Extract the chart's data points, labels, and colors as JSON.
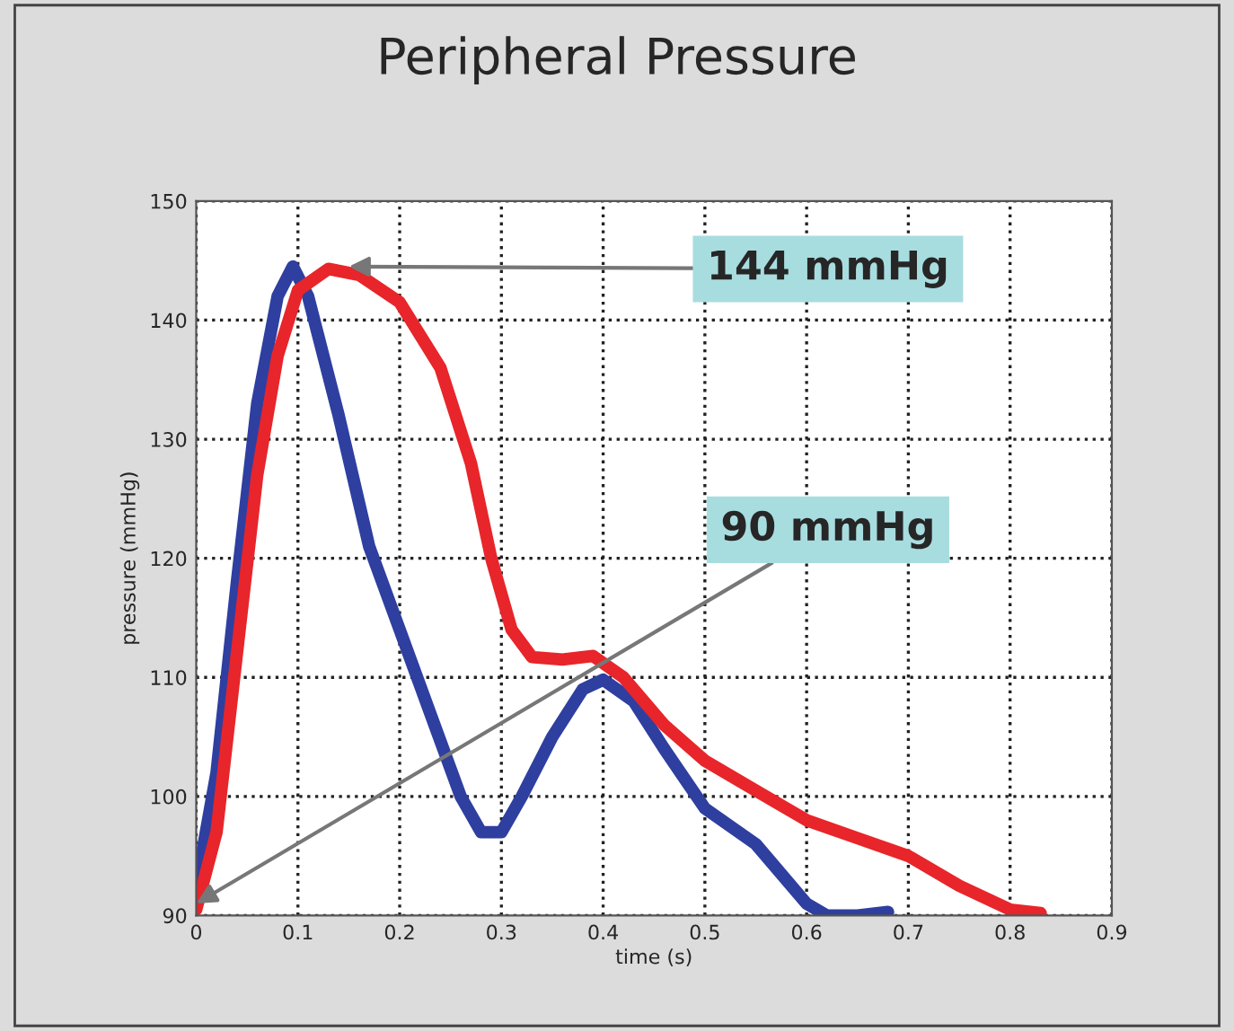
{
  "chart_data": {
    "type": "line",
    "title": "Peripheral Pressure",
    "xlabel": "time (s)",
    "ylabel": "pressure (mmHg)",
    "xlim": [
      0,
      0.9
    ],
    "xticks": [
      0,
      0.1,
      0.2,
      0.3,
      0.4,
      0.5,
      0.6,
      0.7,
      0.8,
      0.9
    ],
    "ylim": [
      90,
      150
    ],
    "yticks": [
      90,
      100,
      110,
      120,
      130,
      140,
      150
    ],
    "grid": true,
    "legend": false,
    "line_style": "solid",
    "marker": "none",
    "series": [
      {
        "color": "#2e3fa0",
        "x": [
          0,
          0.02,
          0.04,
          0.06,
          0.08,
          0.095,
          0.11,
          0.14,
          0.17,
          0.2,
          0.23,
          0.26,
          0.28,
          0.3,
          0.32,
          0.35,
          0.38,
          0.4,
          0.43,
          0.46,
          0.5,
          0.55,
          0.6,
          0.62,
          0.65,
          0.68
        ],
        "values": [
          92.5,
          102,
          118,
          133,
          142,
          144.5,
          142,
          132,
          121,
          114,
          107,
          100,
          97,
          97,
          100,
          105,
          109,
          109.8,
          108,
          104,
          99,
          96,
          91,
          90,
          90,
          90.3
        ]
      },
      {
        "color": "#e8252a",
        "x": [
          0,
          0.02,
          0.04,
          0.06,
          0.08,
          0.1,
          0.13,
          0.16,
          0.2,
          0.24,
          0.27,
          0.29,
          0.31,
          0.33,
          0.36,
          0.39,
          0.42,
          0.46,
          0.5,
          0.55,
          0.6,
          0.65,
          0.7,
          0.75,
          0.8,
          0.83
        ],
        "values": [
          90.5,
          97,
          112,
          127,
          137,
          142.5,
          144.3,
          143.8,
          141.5,
          136,
          128,
          120,
          114,
          111.7,
          111.5,
          111.8,
          110,
          106,
          103,
          100.5,
          98,
          96.5,
          95,
          92.5,
          90.5,
          90.2
        ]
      }
    ],
    "annotations": [
      {
        "text": "144 mmHg",
        "x": 0.15,
        "y": 144.5
      },
      {
        "text": "90 mmHg",
        "x": 0,
        "y": 91
      }
    ]
  }
}
